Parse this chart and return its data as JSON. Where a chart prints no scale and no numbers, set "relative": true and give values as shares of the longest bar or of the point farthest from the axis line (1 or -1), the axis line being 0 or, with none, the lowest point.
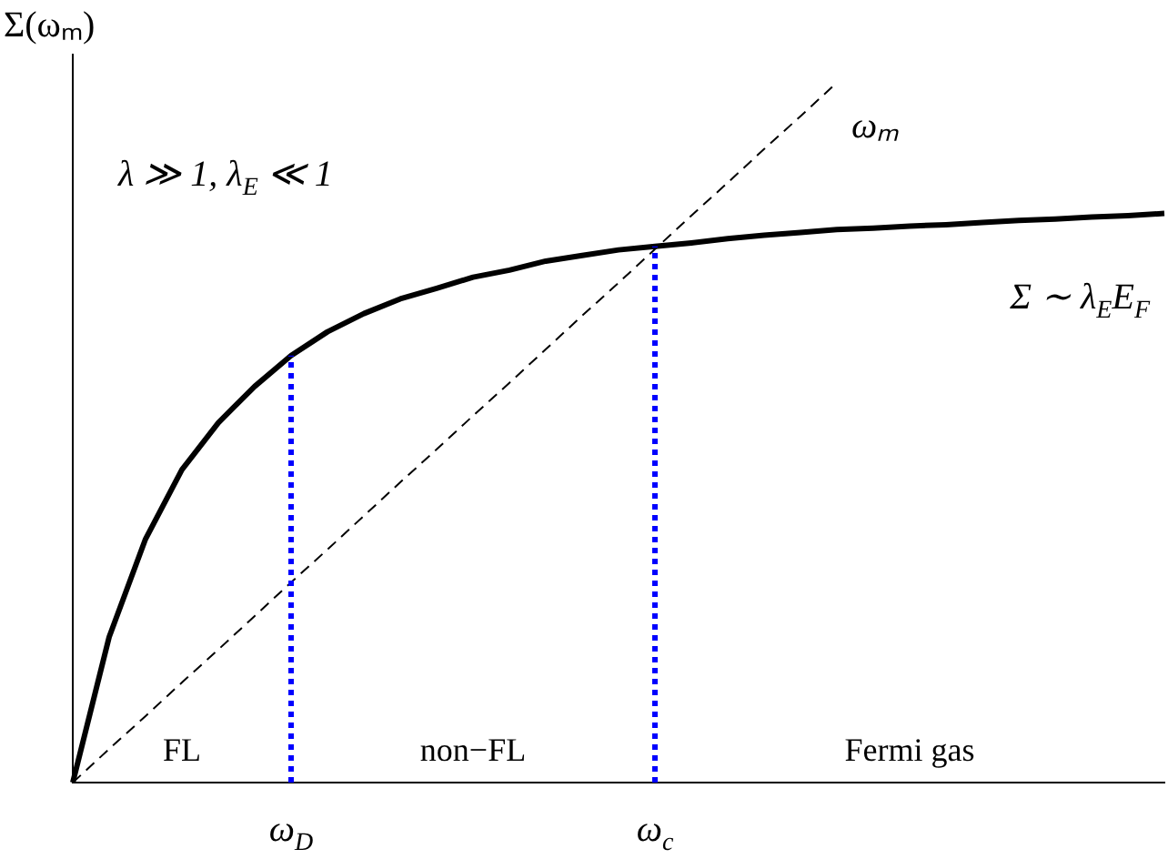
{
  "chart_data": {
    "type": "line",
    "relative": true,
    "ylabel": "Σ(ωₘ)",
    "categories": [
      null,
      null,
      null,
      null,
      null,
      null,
      "ω$_{D}$",
      null,
      null,
      null,
      null,
      null,
      null,
      null,
      null,
      null,
      "ω$_{c}$",
      null,
      null,
      null,
      null,
      null,
      null,
      null,
      null,
      null,
      null,
      null,
      null,
      null,
      null
    ],
    "grid": false,
    "legend": false,
    "marker": "none",
    "series": [
      {
        "name": "Σ ∼ λ$_{E}$E$_{F}$",
        "color": "#000000",
        "line_style": "solid",
        "values": [
          0,
          0.208,
          0.348,
          0.447,
          0.514,
          0.566,
          0.61,
          0.644,
          0.67,
          0.691,
          0.706,
          0.722,
          0.732,
          0.745,
          0.753,
          0.761,
          0.766,
          0.771,
          0.777,
          0.782,
          0.786,
          0.79,
          0.792,
          0.795,
          0.797,
          0.8,
          0.803,
          0.805,
          0.808,
          0.81,
          0.813
        ]
      },
      {
        "name": "ωₘ",
        "color": "#000000",
        "line_style": "dashed",
        "values": [
          0,
          0.048,
          0.095,
          0.143,
          0.19,
          0.238,
          0.286,
          0.333,
          0.381,
          0.429,
          0.476,
          0.524,
          0.571,
          0.619,
          0.667,
          0.714,
          0.762,
          0.81,
          0.857,
          0.905,
          0.952,
          1,
          null,
          null,
          null,
          null,
          null,
          null,
          null,
          null,
          null
        ]
      }
    ],
    "ref_lines": [
      {
        "axis": "x",
        "value": "ω$_{D}$",
        "color": "#0000ff",
        "line_style": "dotted"
      },
      {
        "axis": "x",
        "value": "ω$_{c}$",
        "color": "#0000ff",
        "line_style": "dotted"
      }
    ],
    "annotations": [
      "λ ≫ 1, λ$_{E}$ ≪ 1",
      "FL",
      "non−FL",
      "Fermi gas"
    ]
  }
}
